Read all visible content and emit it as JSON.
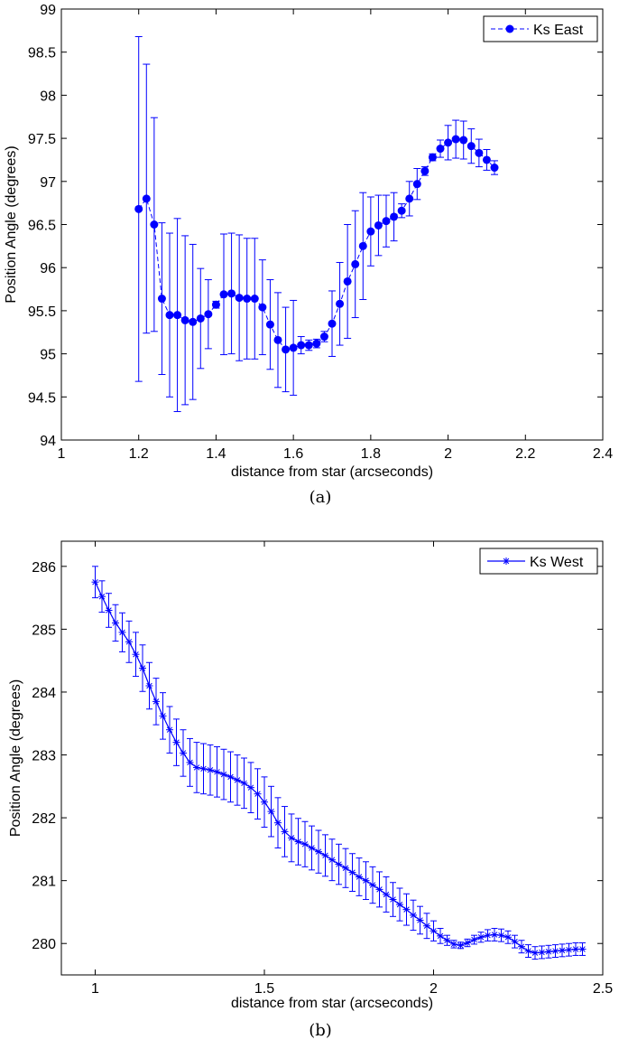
{
  "chart_data": [
    {
      "type": "scatter",
      "panel_label": "(a)",
      "xlabel": "distance from star (arcseconds)",
      "ylabel": "Position Angle (degrees)",
      "xlim": [
        1,
        2.4
      ],
      "ylim": [
        94,
        99
      ],
      "xticks": [
        "1",
        "1.2",
        "1.4",
        "1.6",
        "1.8",
        "2",
        "2.2",
        "2.4"
      ],
      "yticks": [
        "94",
        "94.5",
        "95",
        "95.5",
        "96",
        "96.5",
        "97",
        "97.5",
        "98",
        "98.5",
        "99"
      ],
      "grid": false,
      "legend_position": "top-right",
      "color": "#0000ff",
      "series": [
        {
          "name": "Ks East",
          "marker": "filled-circle",
          "line": "dashed",
          "x": [
            1.2,
            1.22,
            1.24,
            1.26,
            1.28,
            1.3,
            1.32,
            1.34,
            1.36,
            1.38,
            1.4,
            1.42,
            1.44,
            1.46,
            1.48,
            1.5,
            1.52,
            1.54,
            1.56,
            1.58,
            1.6,
            1.62,
            1.64,
            1.66,
            1.68,
            1.7,
            1.72,
            1.74,
            1.76,
            1.78,
            1.8,
            1.82,
            1.84,
            1.86,
            1.88,
            1.9,
            1.92,
            1.94,
            1.96,
            1.98,
            2.0,
            2.02,
            2.04,
            2.06,
            2.08,
            2.1,
            2.12
          ],
          "y": [
            96.68,
            96.8,
            96.5,
            95.64,
            95.45,
            95.45,
            95.39,
            95.37,
            95.41,
            95.46,
            95.57,
            95.69,
            95.7,
            95.65,
            95.64,
            95.64,
            95.54,
            95.34,
            95.16,
            95.05,
            95.07,
            95.1,
            95.1,
            95.12,
            95.2,
            95.35,
            95.58,
            95.84,
            96.04,
            96.25,
            96.42,
            96.49,
            96.54,
            96.59,
            96.66,
            96.8,
            96.97,
            97.12,
            97.28,
            97.38,
            97.45,
            97.49,
            97.48,
            97.41,
            97.33,
            97.25,
            97.16
          ],
          "error": [
            2.0,
            1.56,
            1.24,
            0.88,
            0.95,
            1.12,
            0.98,
            0.9,
            0.58,
            0.4,
            0.04,
            0.7,
            0.7,
            0.73,
            0.7,
            0.7,
            0.55,
            0.52,
            0.55,
            0.49,
            0.55,
            0.1,
            0.06,
            0.05,
            0.06,
            0.38,
            0.48,
            0.66,
            0.62,
            0.62,
            0.4,
            0.35,
            0.3,
            0.28,
            0.08,
            0.2,
            0.18,
            0.05,
            0.04,
            0.1,
            0.2,
            0.22,
            0.22,
            0.2,
            0.16,
            0.12,
            0.08
          ]
        }
      ]
    },
    {
      "type": "line",
      "panel_label": "(b)",
      "xlabel": "distance from star (arcseconds)",
      "ylabel": "Position Angle (degrees)",
      "xlim": [
        0.9,
        2.5
      ],
      "ylim": [
        279.5,
        286.4
      ],
      "xticks": [
        "1",
        "1.5",
        "2",
        "2.5"
      ],
      "yticks": [
        "280",
        "281",
        "282",
        "283",
        "284",
        "285",
        "286"
      ],
      "grid": false,
      "legend_position": "top-right",
      "color": "#0000ff",
      "series": [
        {
          "name": "Ks West",
          "marker": "asterisk",
          "line": "solid",
          "x_start": 1.0,
          "x_step": 0.02,
          "y": [
            285.75,
            285.52,
            285.3,
            285.1,
            284.95,
            284.8,
            284.6,
            284.38,
            284.1,
            283.85,
            283.62,
            283.4,
            283.2,
            283.03,
            282.88,
            282.8,
            282.78,
            282.76,
            282.73,
            282.69,
            282.65,
            282.6,
            282.55,
            282.48,
            282.38,
            282.25,
            282.1,
            281.92,
            281.78,
            281.68,
            281.62,
            281.58,
            281.52,
            281.46,
            281.4,
            281.33,
            281.26,
            281.2,
            281.13,
            281.06,
            281.0,
            280.93,
            280.86,
            280.78,
            280.7,
            280.62,
            280.54,
            280.45,
            280.37,
            280.28,
            280.2,
            280.12,
            280.05,
            279.99,
            279.97,
            280.01,
            280.06,
            280.1,
            280.13,
            280.14,
            280.13,
            280.1,
            280.03,
            279.95,
            279.88,
            279.85,
            279.86,
            279.87,
            279.88,
            279.89,
            279.9,
            279.91,
            279.91
          ],
          "error": [
            0.25,
            0.25,
            0.27,
            0.29,
            0.31,
            0.33,
            0.35,
            0.37,
            0.37,
            0.37,
            0.37,
            0.37,
            0.37,
            0.37,
            0.38,
            0.4,
            0.4,
            0.4,
            0.4,
            0.4,
            0.4,
            0.4,
            0.4,
            0.4,
            0.4,
            0.4,
            0.4,
            0.4,
            0.4,
            0.38,
            0.37,
            0.36,
            0.35,
            0.34,
            0.33,
            0.33,
            0.32,
            0.31,
            0.3,
            0.3,
            0.3,
            0.29,
            0.28,
            0.28,
            0.27,
            0.26,
            0.25,
            0.24,
            0.22,
            0.2,
            0.16,
            0.12,
            0.08,
            0.06,
            0.05,
            0.06,
            0.07,
            0.08,
            0.09,
            0.1,
            0.1,
            0.1,
            0.1,
            0.1,
            0.1,
            0.1,
            0.1,
            0.1,
            0.1,
            0.1,
            0.1,
            0.1,
            0.1
          ]
        }
      ]
    }
  ]
}
